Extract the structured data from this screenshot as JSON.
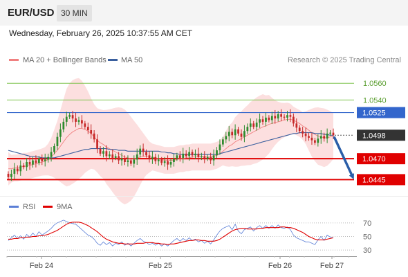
{
  "header": {
    "symbol": "EUR/USD",
    "timeframe": "30 MIN"
  },
  "datetime": "Wednesday, February 26, 2025 10:37:55 AM CET",
  "credit": "Research © 2025 Trading Central",
  "colors": {
    "bollinger_fill": "#fcd9d9",
    "ma20": "#f08080",
    "ma50": "#3a5f9e",
    "up_candle": "#2e8b2e",
    "down_candle": "#c62828",
    "green_level": "#7cc24a",
    "blue_level": "#3366cc",
    "red_level": "#e00000",
    "last_price_bg": "#333333",
    "rsi": "#5b7fd6",
    "rsi_ma": "#e00000",
    "arrow": "#2a5ea8"
  },
  "chart_data": [
    {
      "type": "candlestick",
      "legend": [
        {
          "name": "MA 20 + Bollinger Bands",
          "color": "#f08080"
        },
        {
          "name": "MA 50",
          "color": "#3a5f9e"
        }
      ],
      "ylim": [
        1.0428,
        1.058
      ],
      "x_ticks": [
        "Feb 24",
        "Feb 25",
        "Feb 26",
        "Feb 27"
      ],
      "price_levels": [
        {
          "value": 1.056,
          "label": "1.0560",
          "type": "target",
          "color": "#7cc24a"
        },
        {
          "value": 1.054,
          "label": "1.0540",
          "type": "target",
          "color": "#7cc24a"
        },
        {
          "value": 1.0525,
          "label": "1.0525",
          "type": "pivot",
          "color": "#3366cc"
        },
        {
          "value": 1.0498,
          "label": "1.0498",
          "type": "last",
          "color": "#333333"
        },
        {
          "value": 1.047,
          "label": "1.0470",
          "type": "support",
          "color": "#e00000"
        },
        {
          "value": 1.0445,
          "label": "1.0445",
          "type": "support",
          "color": "#e00000"
        }
      ],
      "arrow": {
        "from": 1.0498,
        "to": 1.0445,
        "direction": "down"
      },
      "close": [
        1.0448,
        1.0452,
        1.0458,
        1.0455,
        1.0462,
        1.046,
        1.0466,
        1.0463,
        1.0468,
        1.0465,
        1.047,
        1.0467,
        1.0469,
        1.0472,
        1.0478,
        1.0485,
        1.0496,
        1.0505,
        1.0514,
        1.052,
        1.0522,
        1.0518,
        1.0514,
        1.0516,
        1.0512,
        1.0508,
        1.0504,
        1.05,
        1.0493,
        1.0482,
        1.0476,
        1.0479,
        1.0473,
        1.0475,
        1.0471,
        1.0473,
        1.0468,
        1.047,
        1.0466,
        1.0468,
        1.0464,
        1.0469,
        1.0475,
        1.0482,
        1.0478,
        1.0474,
        1.047,
        1.0472,
        1.0467,
        1.0469,
        1.0465,
        1.0467,
        1.0463,
        1.0466,
        1.047,
        1.0474,
        1.0471,
        1.0476,
        1.0473,
        1.0478,
        1.0474,
        1.0476,
        1.0472,
        1.0473,
        1.047,
        1.0472,
        1.0468,
        1.0474,
        1.048,
        1.0487,
        1.0493,
        1.0497,
        1.0502,
        1.0498,
        1.0505,
        1.05,
        1.0496,
        1.0503,
        1.0508,
        1.0512,
        1.0508,
        1.0513,
        1.0517,
        1.0514,
        1.0519,
        1.0516,
        1.0521,
        1.0518,
        1.0523,
        1.052,
        1.0519,
        1.0522,
        1.052,
        1.0512,
        1.0507,
        1.0503,
        1.05,
        1.0497,
        1.0495,
        1.0492,
        1.0489,
        1.0494,
        1.0497,
        1.0494,
        1.05,
        1.0501,
        1.0498
      ],
      "series": [
        {
          "name": "MA 20 + Bollinger Bands",
          "values": [
            1.0458,
            1.0458,
            1.0459,
            1.0459,
            1.046,
            1.0461,
            1.0461,
            1.0462,
            1.0463,
            1.0464,
            1.0465,
            1.0466,
            1.0467,
            1.0469,
            1.0472,
            1.0476,
            1.048,
            1.0485,
            1.049,
            1.0495,
            1.0499,
            1.0502,
            1.0504,
            1.0506,
            1.0506,
            1.0505,
            1.0503,
            1.05,
            1.0496,
            1.0492,
            1.0489,
            1.0487,
            1.0484,
            1.0482,
            1.048,
            1.0478,
            1.0476,
            1.0474,
            1.0472,
            1.0471,
            1.047,
            1.047,
            1.0471,
            1.0472,
            1.0473,
            1.0473,
            1.0472,
            1.0472,
            1.0471,
            1.047,
            1.0469,
            1.0468,
            1.0468,
            1.0468,
            1.0468,
            1.0469,
            1.047,
            1.047,
            1.0471,
            1.0471,
            1.0472,
            1.0472,
            1.0472,
            1.0472,
            1.0472,
            1.0472,
            1.0472,
            1.0473,
            1.0474,
            1.0476,
            1.0479,
            1.0482,
            1.0485,
            1.0487,
            1.049,
            1.0492,
            1.0494,
            1.0496,
            1.0498,
            1.05,
            1.0502,
            1.0504,
            1.0506,
            1.0508,
            1.0509,
            1.0511,
            1.0512,
            1.0513,
            1.0514,
            1.0515,
            1.0516,
            1.0517,
            1.0517,
            1.0516,
            1.0514,
            1.0512,
            1.0509,
            1.0507,
            1.0504,
            1.0501,
            1.0499,
            1.0497,
            1.0496,
            1.0495,
            1.0495,
            1.0496,
            1.0497
          ]
        },
        {
          "name": "MA 50",
          "values": [
            1.048,
            1.0479,
            1.0478,
            1.0477,
            1.0476,
            1.0475,
            1.0474,
            1.0473,
            1.0473,
            1.0472,
            1.0472,
            1.0471,
            1.0471,
            1.0471,
            1.0471,
            1.0471,
            1.0472,
            1.0473,
            1.0474,
            1.0475,
            1.0476,
            1.0477,
            1.0478,
            1.0479,
            1.048,
            1.0481,
            1.0481,
            1.0482,
            1.0482,
            1.0482,
            1.0482,
            1.0482,
            1.0482,
            1.0481,
            1.0481,
            1.0481,
            1.048,
            1.048,
            1.048,
            1.0479,
            1.0479,
            1.0479,
            1.0479,
            1.0479,
            1.0479,
            1.0479,
            1.0479,
            1.0479,
            1.0479,
            1.0479,
            1.0478,
            1.0478,
            1.0477,
            1.0477,
            1.0476,
            1.0476,
            1.0475,
            1.0475,
            1.0475,
            1.0475,
            1.0475,
            1.0475,
            1.0475,
            1.0475,
            1.0475,
            1.0475,
            1.0475,
            1.0475,
            1.0475,
            1.0476,
            1.0477,
            1.0478,
            1.0479,
            1.048,
            1.0481,
            1.0482,
            1.0483,
            1.0484,
            1.0485,
            1.0486,
            1.0487,
            1.0488,
            1.0489,
            1.049,
            1.0491,
            1.0492,
            1.0493,
            1.0494,
            1.0495,
            1.0496,
            1.0497,
            1.0498,
            1.0499,
            1.05,
            1.05,
            1.0501,
            1.0501,
            1.0501,
            1.0501,
            1.0501,
            1.05,
            1.05,
            1.05,
            1.0499,
            1.0499,
            1.0498,
            1.0498
          ]
        }
      ]
    },
    {
      "type": "line",
      "ylim": [
        25,
        80
      ],
      "y_ticks": [
        70,
        50,
        30
      ],
      "series": [
        {
          "name": "RSI",
          "color": "#5b7fd6",
          "values": [
            44,
            48,
            52,
            47,
            51,
            46,
            53,
            49,
            55,
            50,
            57,
            52,
            55,
            58,
            62,
            67,
            70,
            72,
            74,
            72,
            70,
            69,
            68,
            64,
            60,
            56,
            52,
            50,
            46,
            40,
            37,
            42,
            38,
            41,
            36,
            40,
            38,
            42,
            37,
            40,
            36,
            40,
            44,
            47,
            43,
            41,
            38,
            40,
            37,
            40,
            36,
            39,
            36,
            40,
            44,
            47,
            43,
            47,
            44,
            48,
            44,
            46,
            42,
            44,
            40,
            43,
            39,
            45,
            52,
            58,
            62,
            64,
            66,
            60,
            68,
            58,
            54,
            60,
            62,
            64,
            58,
            63,
            66,
            62,
            66,
            62,
            66,
            62,
            67,
            63,
            62,
            64,
            60,
            52,
            48,
            46,
            44,
            42,
            42,
            40,
            38,
            45,
            50,
            44,
            52,
            49,
            48
          ]
        },
        {
          "name": "9MA",
          "color": "#e00000",
          "values": [
            46,
            46,
            47,
            47,
            48,
            48,
            49,
            49,
            50,
            50,
            51,
            51,
            52,
            53,
            55,
            57,
            59,
            62,
            65,
            68,
            70,
            71,
            71,
            71,
            70,
            68,
            66,
            63,
            60,
            57,
            53,
            49,
            46,
            44,
            42,
            41,
            40,
            40,
            39,
            39,
            39,
            39,
            40,
            40,
            40,
            41,
            41,
            41,
            40,
            40,
            39,
            39,
            38,
            39,
            39,
            40,
            41,
            42,
            43,
            44,
            44,
            45,
            45,
            44,
            44,
            43,
            43,
            43,
            44,
            46,
            49,
            52,
            55,
            58,
            60,
            61,
            62,
            62,
            61,
            61,
            61,
            61,
            62,
            62,
            63,
            63,
            63,
            63,
            63,
            64,
            64,
            63,
            63,
            62,
            60,
            58,
            56,
            53,
            50,
            48,
            46,
            45,
            45,
            45,
            46,
            47,
            48
          ]
        }
      ]
    }
  ]
}
